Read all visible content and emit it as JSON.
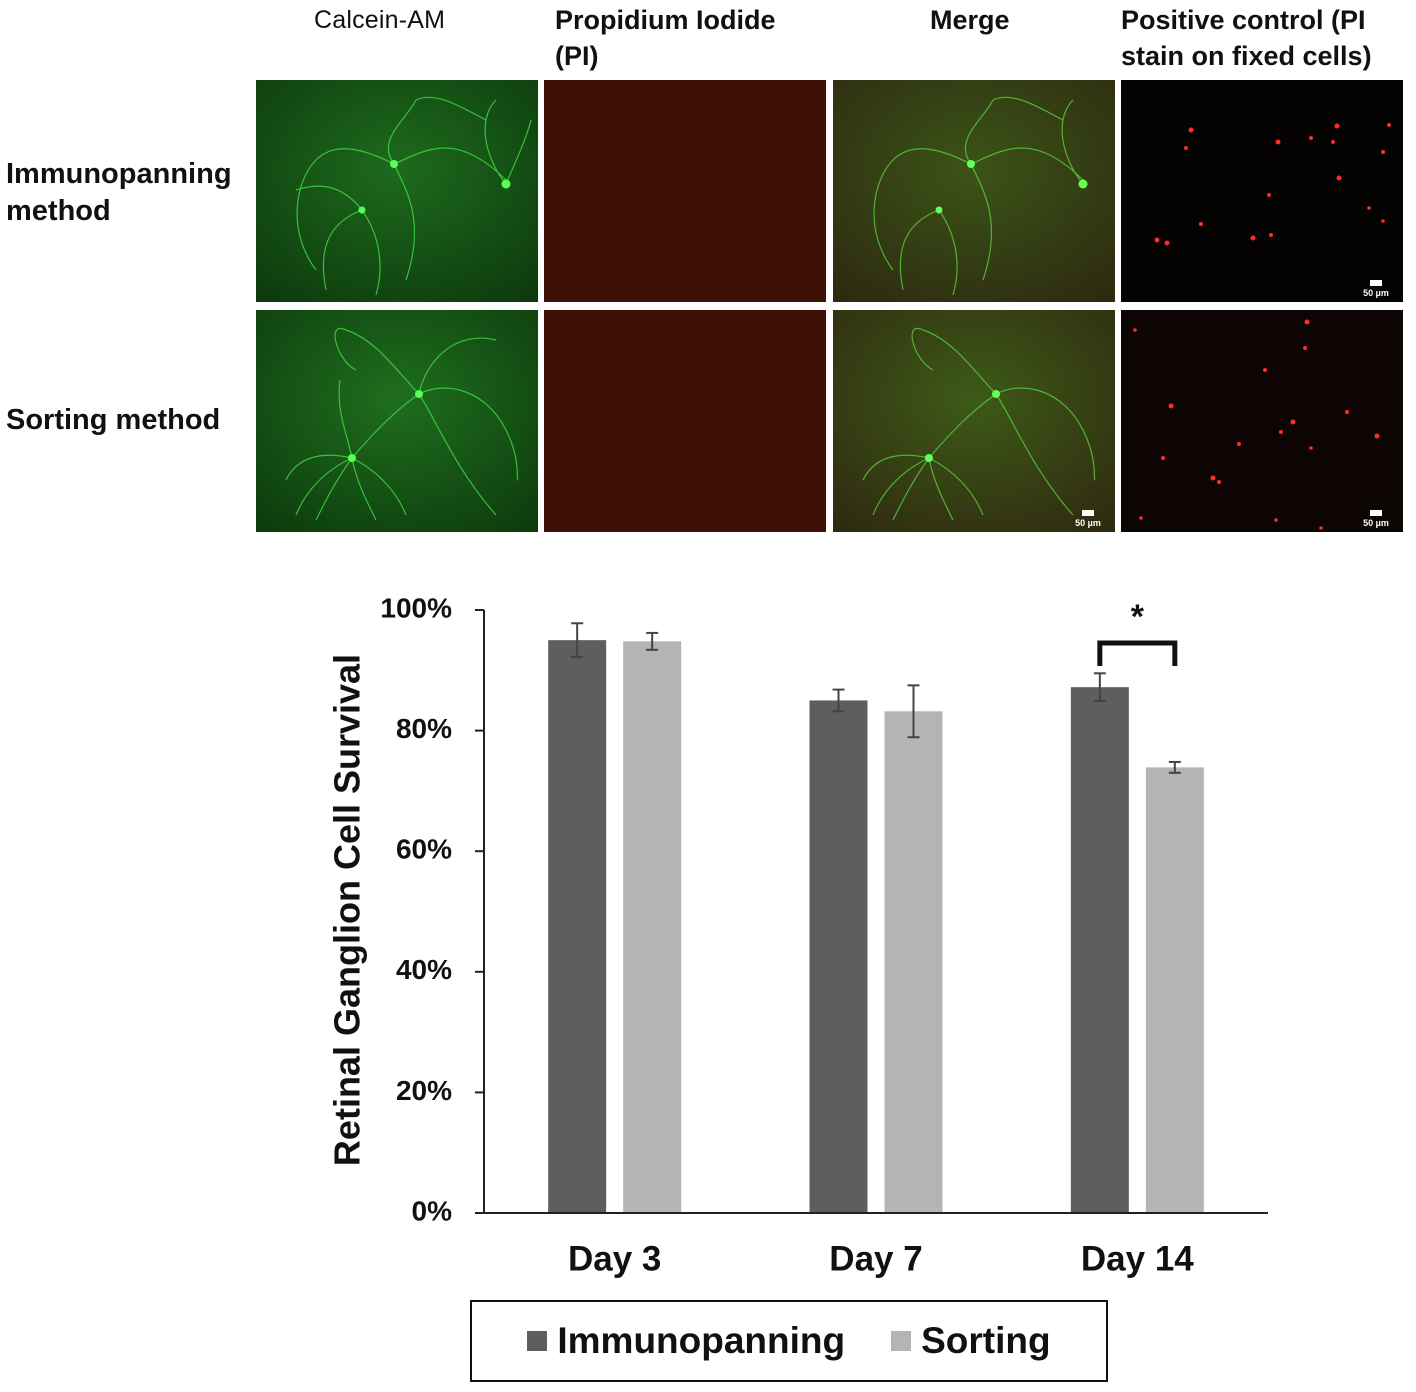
{
  "panels": {
    "columns": [
      "Calcein-AM",
      "Propidium Iodide (PI)",
      "Merge",
      "Positive control (PI stain on fixed cells)"
    ],
    "column_lines": [
      [
        "Calcein-AM"
      ],
      [
        "Propidium Iodide",
        "(PI)"
      ],
      [
        "Merge"
      ],
      [
        "Positive control (PI",
        "stain on fixed cells)"
      ]
    ],
    "rows": [
      [
        "Immunopanning",
        "method"
      ],
      [
        "Sorting method"
      ]
    ],
    "scale_bar_label": "50 µm"
  },
  "chart_data": {
    "type": "bar",
    "categories": [
      "Day 3",
      "Day 7",
      "Day 14"
    ],
    "series": [
      {
        "name": "Immunopanning",
        "values": [
          0.95,
          0.85,
          0.872
        ],
        "errors": [
          0.028,
          0.018,
          0.023
        ],
        "color": "#5e5e5e"
      },
      {
        "name": "Sorting",
        "values": [
          0.948,
          0.832,
          0.739
        ],
        "errors": [
          0.014,
          0.043,
          0.009
        ],
        "color": "#b4b4b4"
      }
    ],
    "ylabel": "Retinal Ganglion Cell Survival",
    "xlabel": "",
    "ylim": [
      0,
      1
    ],
    "yticks": [
      "0%",
      "20%",
      "40%",
      "60%",
      "80%",
      "100%"
    ],
    "ytick_values": [
      0,
      0.2,
      0.4,
      0.6,
      0.8,
      1.0
    ],
    "significance": [
      {
        "category": "Day 14",
        "label": "*"
      }
    ],
    "grid": false,
    "legend": "bottom"
  },
  "legend": {
    "items": [
      {
        "label": "Immunopanning",
        "color": "#5e5e5e"
      },
      {
        "label": "Sorting",
        "color": "#b4b4b4"
      }
    ]
  }
}
